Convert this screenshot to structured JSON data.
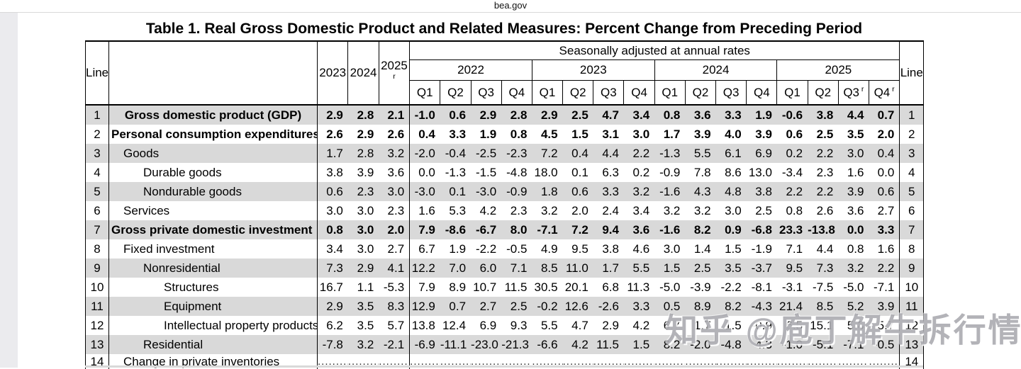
{
  "page": {
    "site_label": "bea.gov"
  },
  "watermark": {
    "text": "知乎 @庖丁解牛拆行情"
  },
  "table": {
    "title": "Table 1. Real Gross Domestic Product and Related Measures: Percent Change from Preceding Period",
    "line_header": "Line",
    "span_header": "Seasonally adjusted at annual rates",
    "annual_columns": [
      {
        "label": "2023",
        "sup": ""
      },
      {
        "label": "2024",
        "sup": ""
      },
      {
        "label": "2025",
        "sup": "r"
      }
    ],
    "year_groups": [
      {
        "label": "2022",
        "quarters": [
          {
            "label": "Q1",
            "sup": ""
          },
          {
            "label": "Q2",
            "sup": ""
          },
          {
            "label": "Q3",
            "sup": ""
          },
          {
            "label": "Q4",
            "sup": ""
          }
        ]
      },
      {
        "label": "2023",
        "quarters": [
          {
            "label": "Q1",
            "sup": ""
          },
          {
            "label": "Q2",
            "sup": ""
          },
          {
            "label": "Q3",
            "sup": ""
          },
          {
            "label": "Q4",
            "sup": ""
          }
        ]
      },
      {
        "label": "2024",
        "quarters": [
          {
            "label": "Q1",
            "sup": ""
          },
          {
            "label": "Q2",
            "sup": ""
          },
          {
            "label": "Q3",
            "sup": ""
          },
          {
            "label": "Q4",
            "sup": ""
          }
        ]
      },
      {
        "label": "2025",
        "quarters": [
          {
            "label": "Q1",
            "sup": ""
          },
          {
            "label": "Q2",
            "sup": ""
          },
          {
            "label": "Q3",
            "sup": "r"
          },
          {
            "label": "Q4",
            "sup": "r"
          }
        ]
      }
    ],
    "dots": ".........",
    "rows": [
      {
        "line": "1",
        "label": "Gross domestic product (GDP)",
        "bold": true,
        "center": true,
        "indent": 0,
        "values": [
          "2.9",
          "2.8",
          "2.1",
          "-1.0",
          "0.6",
          "2.9",
          "2.8",
          "2.9",
          "2.5",
          "4.7",
          "3.4",
          "0.8",
          "3.6",
          "3.3",
          "1.9",
          "-0.6",
          "3.8",
          "4.4",
          "0.7"
        ]
      },
      {
        "line": "2",
        "label": "Personal consumption expenditures",
        "bold": true,
        "center": false,
        "indent": 0,
        "values": [
          "2.6",
          "2.9",
          "2.6",
          "0.4",
          "3.3",
          "1.9",
          "0.8",
          "4.5",
          "1.5",
          "3.1",
          "3.0",
          "1.7",
          "3.9",
          "4.0",
          "3.9",
          "0.6",
          "2.5",
          "3.5",
          "2.0"
        ]
      },
      {
        "line": "3",
        "label": "Goods",
        "bold": false,
        "center": false,
        "indent": 1,
        "values": [
          "1.7",
          "2.8",
          "3.2",
          "-2.0",
          "-0.4",
          "-2.5",
          "-2.3",
          "7.2",
          "0.4",
          "4.4",
          "2.2",
          "-1.3",
          "5.5",
          "6.1",
          "6.9",
          "0.2",
          "2.2",
          "3.0",
          "0.4"
        ]
      },
      {
        "line": "4",
        "label": "Durable goods",
        "bold": false,
        "center": false,
        "indent": 2,
        "values": [
          "3.8",
          "3.9",
          "3.6",
          "0.0",
          "-1.3",
          "-1.5",
          "-4.8",
          "18.0",
          "0.1",
          "6.3",
          "0.2",
          "-0.9",
          "7.8",
          "8.6",
          "13.0",
          "-3.4",
          "2.3",
          "1.6",
          "0.0"
        ]
      },
      {
        "line": "5",
        "label": "Nondurable goods",
        "bold": false,
        "center": false,
        "indent": 2,
        "values": [
          "0.6",
          "2.3",
          "3.0",
          "-3.0",
          "0.1",
          "-3.0",
          "-0.9",
          "1.8",
          "0.6",
          "3.3",
          "3.2",
          "-1.6",
          "4.3",
          "4.8",
          "3.8",
          "2.2",
          "2.2",
          "3.9",
          "0.6"
        ]
      },
      {
        "line": "6",
        "label": "Services",
        "bold": false,
        "center": false,
        "indent": 1,
        "values": [
          "3.0",
          "3.0",
          "2.3",
          "1.6",
          "5.3",
          "4.2",
          "2.3",
          "3.2",
          "2.0",
          "2.4",
          "3.4",
          "3.2",
          "3.2",
          "3.0",
          "2.5",
          "0.8",
          "2.6",
          "3.6",
          "2.7"
        ]
      },
      {
        "line": "7",
        "label": "Gross private domestic investment",
        "bold": true,
        "center": false,
        "indent": 0,
        "values": [
          "0.8",
          "3.0",
          "2.0",
          "7.9",
          "-8.6",
          "-6.7",
          "8.0",
          "-7.1",
          "7.2",
          "9.4",
          "3.6",
          "-1.6",
          "8.2",
          "0.9",
          "-6.8",
          "23.3",
          "-13.8",
          "0.0",
          "3.3"
        ]
      },
      {
        "line": "8",
        "label": "Fixed investment",
        "bold": false,
        "center": false,
        "indent": 1,
        "values": [
          "3.4",
          "3.0",
          "2.7",
          "6.7",
          "1.9",
          "-2.2",
          "-0.5",
          "4.9",
          "9.5",
          "3.8",
          "4.6",
          "3.0",
          "1.4",
          "1.5",
          "-1.9",
          "7.1",
          "4.4",
          "0.8",
          "1.6"
        ]
      },
      {
        "line": "9",
        "label": "Nonresidential",
        "bold": false,
        "center": false,
        "indent": 2,
        "values": [
          "7.3",
          "2.9",
          "4.1",
          "12.2",
          "7.0",
          "6.0",
          "7.1",
          "8.5",
          "11.0",
          "1.7",
          "5.5",
          "1.5",
          "2.5",
          "3.5",
          "-3.7",
          "9.5",
          "7.3",
          "3.2",
          "2.2"
        ]
      },
      {
        "line": "10",
        "label": "Structures",
        "bold": false,
        "center": false,
        "indent": 3,
        "values": [
          "16.7",
          "1.1",
          "-5.3",
          "7.9",
          "8.9",
          "10.7",
          "11.5",
          "30.5",
          "20.1",
          "6.8",
          "11.3",
          "-5.0",
          "-3.9",
          "-2.2",
          "-8.1",
          "-3.1",
          "-7.5",
          "-5.0",
          "-7.1"
        ]
      },
      {
        "line": "11",
        "label": "Equipment",
        "bold": false,
        "center": false,
        "indent": 3,
        "values": [
          "2.9",
          "3.5",
          "8.3",
          "12.9",
          "0.7",
          "2.7",
          "2.5",
          "-0.2",
          "12.6",
          "-2.6",
          "3.3",
          "0.5",
          "8.9",
          "8.2",
          "-4.3",
          "21.4",
          "8.5",
          "5.2",
          "3.9"
        ]
      },
      {
        "line": "12",
        "label": "Intellectual property products",
        "bold": false,
        "center": false,
        "indent": 3,
        "values": [
          "6.2",
          "3.5",
          "5.7",
          "13.8",
          "12.4",
          "6.9",
          "9.3",
          "5.5",
          "4.7",
          "2.9",
          "4.2",
          "6.7",
          "1.7",
          "1.5",
          "-0.9",
          "6.5",
          "15.1",
          "5.6",
          "5.7"
        ]
      },
      {
        "line": "13",
        "label": "Residential",
        "bold": false,
        "center": false,
        "indent": 2,
        "values": [
          "-7.8",
          "3.2",
          "-2.1",
          "-6.9",
          "-11.1",
          "-23.0",
          "-21.3",
          "-6.6",
          "4.2",
          "11.5",
          "1.5",
          "8.2",
          "-2.0",
          "-4.8",
          "4.3",
          "-1.0",
          "-5.1",
          "-7.1",
          "-0.5"
        ]
      },
      {
        "line": "14",
        "label": "Change in private inventories",
        "bold": false,
        "center": false,
        "indent": 1,
        "dotted": true,
        "values": [
          ".........",
          ".........",
          ".........",
          ".........",
          ".........",
          ".........",
          ".........",
          ".........",
          ".........",
          ".........",
          ".........",
          ".........",
          ".........",
          ".........",
          ".........",
          ".........",
          ".........",
          ".........",
          "........."
        ]
      }
    ]
  }
}
